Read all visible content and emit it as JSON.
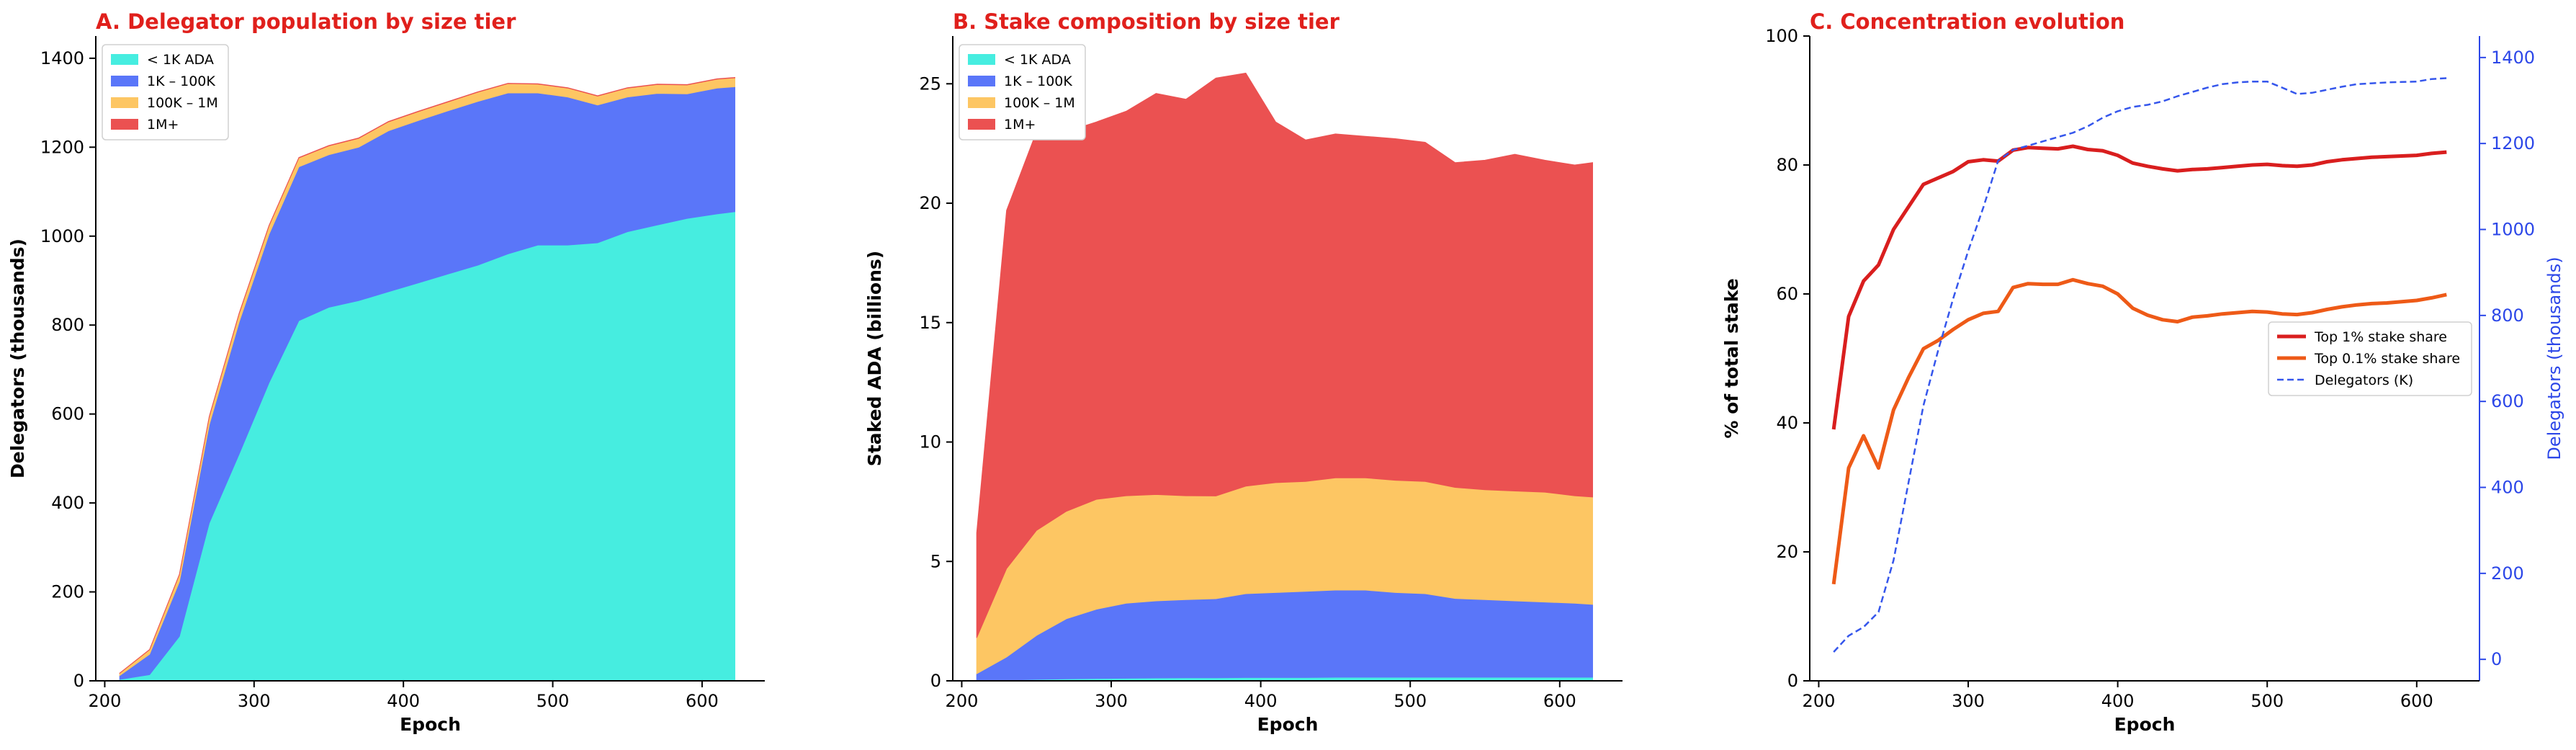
{
  "colors": {
    "title": "#e0201c",
    "under_1k": "#46ede0",
    "k1_100k": "#5a76f9",
    "k100_1m": "#fdc663",
    "m1_plus": "#eb5151",
    "top1": "#d91e1e",
    "top01": "#ee5a17",
    "delegators_line": "#3556ec",
    "right_axis": "#2c47e8"
  },
  "chart_data": [
    {
      "type": "area",
      "stacked": true,
      "title": "A. Delegator population by size tier",
      "xlabel": "Epoch",
      "ylabel": "Delegators (thousands)",
      "xlim": [
        194,
        642
      ],
      "ylim": [
        0,
        1450
      ],
      "xticks": [
        200,
        300,
        400,
        500,
        600
      ],
      "yticks": [
        0,
        200,
        400,
        600,
        800,
        1000,
        1200,
        1400
      ],
      "legend_position": "top-left",
      "x": [
        210,
        230,
        250,
        270,
        290,
        310,
        330,
        350,
        370,
        390,
        410,
        430,
        450,
        470,
        490,
        510,
        530,
        550,
        570,
        590,
        610,
        622
      ],
      "series": [
        {
          "name": "< 1K ADA",
          "color_key": "under_1k",
          "values": [
            3,
            14,
            100,
            355,
            510,
            670,
            810,
            840,
            855,
            875,
            895,
            915,
            935,
            960,
            980,
            980,
            985,
            1010,
            1025,
            1040,
            1050,
            1055
          ]
        },
        {
          "name": "1K – 100K",
          "color_key": "k1_100k",
          "values": [
            9,
            46,
            123,
            221,
            297,
            334,
            346,
            343,
            345,
            362,
            365,
            367,
            368,
            362,
            342,
            333,
            310,
            303,
            296,
            280,
            283,
            281
          ]
        },
        {
          "name": "100K – 1M",
          "color_key": "k100_1m",
          "values": [
            5,
            10,
            16,
            18,
            19,
            19,
            20,
            20,
            20,
            20,
            20,
            20,
            21,
            21,
            20,
            20,
            20,
            20,
            20,
            20,
            20,
            20
          ]
        },
        {
          "name": "1M+",
          "color_key": "m1_plus",
          "values": [
            0.3,
            0.5,
            0.6,
            0.7,
            0.8,
            0.8,
            0.8,
            0.8,
            0.8,
            0.8,
            0.8,
            0.8,
            0.8,
            0.8,
            0.8,
            0.8,
            0.8,
            0.8,
            0.8,
            0.8,
            0.8,
            0.8
          ]
        }
      ]
    },
    {
      "type": "area",
      "stacked": true,
      "title": "B. Stake composition by size tier",
      "xlabel": "Epoch",
      "ylabel": "Staked ADA (billions)",
      "xlim": [
        194,
        642
      ],
      "ylim": [
        0,
        27
      ],
      "xticks": [
        200,
        300,
        400,
        500,
        600
      ],
      "yticks": [
        0,
        5,
        10,
        15,
        20,
        25
      ],
      "legend_position": "top-left",
      "x": [
        210,
        230,
        250,
        270,
        290,
        310,
        330,
        350,
        370,
        390,
        410,
        430,
        450,
        470,
        490,
        510,
        530,
        550,
        570,
        590,
        610,
        622
      ],
      "series": [
        {
          "name": "< 1K ADA",
          "color_key": "under_1k",
          "values": [
            0.01,
            0.03,
            0.06,
            0.08,
            0.1,
            0.11,
            0.12,
            0.13,
            0.13,
            0.14,
            0.14,
            0.14,
            0.15,
            0.15,
            0.15,
            0.15,
            0.15,
            0.15,
            0.15,
            0.15,
            0.15,
            0.15
          ]
        },
        {
          "name": "1K – 100K",
          "color_key": "k1_100k",
          "values": [
            0.29,
            0.97,
            1.84,
            2.52,
            2.9,
            3.14,
            3.23,
            3.27,
            3.31,
            3.51,
            3.56,
            3.61,
            3.65,
            3.65,
            3.55,
            3.5,
            3.3,
            3.25,
            3.2,
            3.15,
            3.1,
            3.05
          ]
        },
        {
          "name": "100K – 1M",
          "color_key": "k100_1m",
          "values": [
            1.5,
            3.7,
            4.4,
            4.5,
            4.6,
            4.5,
            4.45,
            4.35,
            4.3,
            4.5,
            4.6,
            4.6,
            4.7,
            4.7,
            4.7,
            4.7,
            4.65,
            4.6,
            4.6,
            4.6,
            4.5,
            4.5
          ]
        },
        {
          "name": "1M+",
          "color_key": "m1_plus",
          "values": [
            4.4,
            15,
            16.7,
            15.9,
            15.8,
            16.1,
            16.8,
            16.6,
            17.5,
            17.3,
            15.1,
            14.3,
            14.4,
            14.3,
            14.3,
            14.2,
            13.6,
            13.8,
            14.1,
            13.9,
            13.85,
            14.0
          ]
        }
      ]
    },
    {
      "type": "line",
      "title": "C. Concentration evolution",
      "xlabel": "Epoch",
      "ylabel": "% of total stake",
      "ylabel_right": "Delegators (thousands)",
      "xlim": [
        194,
        642
      ],
      "ylim": [
        0,
        100
      ],
      "ylim_right": [
        -50,
        1450
      ],
      "xticks": [
        200,
        300,
        400,
        500,
        600
      ],
      "yticks": [
        0,
        20,
        40,
        60,
        80,
        100
      ],
      "yticks_right": [
        0,
        200,
        400,
        600,
        800,
        1000,
        1200,
        1400
      ],
      "legend_position": "center-right",
      "series": [
        {
          "name": "Top 1% stake share",
          "axis": "left",
          "color_key": "top1",
          "style": "solid",
          "x": [
            210,
            220,
            230,
            240,
            250,
            260,
            270,
            280,
            290,
            300,
            310,
            320,
            330,
            340,
            350,
            360,
            370,
            380,
            390,
            400,
            410,
            420,
            430,
            440,
            450,
            460,
            470,
            480,
            490,
            500,
            510,
            520,
            530,
            540,
            550,
            560,
            570,
            580,
            590,
            600,
            610,
            620
          ],
          "values": [
            39,
            56.5,
            62,
            64.5,
            70,
            73.5,
            77,
            78,
            79,
            80.5,
            80.8,
            80.6,
            82.3,
            82.7,
            82.6,
            82.5,
            82.9,
            82.4,
            82.2,
            81.5,
            80.3,
            79.8,
            79.4,
            79.1,
            79.3,
            79.4,
            79.6,
            79.8,
            80,
            80.1,
            79.9,
            79.8,
            80,
            80.5,
            80.8,
            81,
            81.2,
            81.3,
            81.4,
            81.5,
            81.8,
            82
          ]
        },
        {
          "name": "Top 0.1% stake share",
          "axis": "left",
          "color_key": "top01",
          "style": "solid",
          "x": [
            210,
            220,
            230,
            240,
            250,
            260,
            270,
            280,
            290,
            300,
            310,
            320,
            330,
            340,
            350,
            360,
            370,
            380,
            390,
            400,
            410,
            420,
            430,
            440,
            450,
            460,
            470,
            480,
            490,
            500,
            510,
            520,
            530,
            540,
            550,
            560,
            570,
            580,
            590,
            600,
            610,
            620
          ],
          "values": [
            15,
            33,
            38,
            33,
            42,
            47,
            51.5,
            52.8,
            54.5,
            56,
            57,
            57.3,
            61,
            61.6,
            61.5,
            61.5,
            62.2,
            61.6,
            61.2,
            60,
            57.8,
            56.7,
            56,
            55.7,
            56.4,
            56.6,
            56.9,
            57.1,
            57.3,
            57.2,
            56.9,
            56.8,
            57.1,
            57.6,
            58,
            58.3,
            58.5,
            58.6,
            58.8,
            59,
            59.4,
            59.9
          ]
        },
        {
          "name": "Delegators (K)",
          "axis": "right",
          "color_key": "delegators_line",
          "style": "dashed",
          "x": [
            210,
            220,
            230,
            240,
            250,
            260,
            270,
            280,
            290,
            300,
            310,
            320,
            330,
            340,
            350,
            360,
            370,
            380,
            390,
            400,
            410,
            420,
            430,
            440,
            450,
            460,
            470,
            480,
            490,
            500,
            510,
            520,
            530,
            540,
            550,
            560,
            570,
            580,
            590,
            600,
            610,
            620
          ],
          "values": [
            17,
            55,
            75,
            110,
            230,
            410,
            590,
            720,
            840,
            950,
            1050,
            1160,
            1185,
            1195,
            1205,
            1215,
            1225,
            1240,
            1260,
            1275,
            1285,
            1290,
            1298,
            1310,
            1320,
            1330,
            1338,
            1342,
            1344,
            1344,
            1330,
            1315,
            1318,
            1325,
            1332,
            1338,
            1340,
            1342,
            1343,
            1344,
            1350,
            1352
          ]
        }
      ]
    }
  ]
}
